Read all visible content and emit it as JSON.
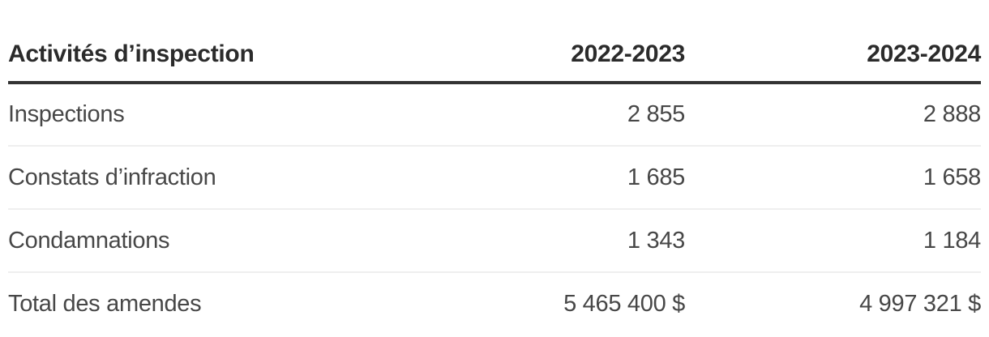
{
  "table": {
    "columns": [
      "Activités d’inspection",
      "2022-2023",
      "2023-2024"
    ],
    "rows": [
      [
        "Inspections",
        "2 855",
        "2 888"
      ],
      [
        "Constats d’infraction",
        "1 685",
        "1 658"
      ],
      [
        "Condamnations",
        "1 343",
        "1 184"
      ],
      [
        "Total des amendes",
        "5 465 400 $",
        "4 997 321 $"
      ]
    ]
  },
  "colors": {
    "header_rule": "#333333",
    "row_divider": "#efefef",
    "header_text": "#2b2b2b",
    "body_text": "#474747",
    "background": "#ffffff"
  },
  "chart_data": {
    "type": "table",
    "title": "Activités d’inspection",
    "columns": [
      "Activités d’inspection",
      "2022-2023",
      "2023-2024"
    ],
    "rows": [
      {
        "label": "Inspections",
        "2022-2023": 2855,
        "2023-2024": 2888
      },
      {
        "label": "Constats d’infraction",
        "2022-2023": 1685,
        "2023-2024": 1658
      },
      {
        "label": "Condamnations",
        "2022-2023": 1343,
        "2023-2024": 1184
      },
      {
        "label": "Total des amendes",
        "2022-2023": "5 465 400 $",
        "2023-2024": "4 997 321 $"
      }
    ],
    "layout_hints": {
      "first_column_align": "left",
      "value_columns_align": "right",
      "header_rule": "thick-dark",
      "row_dividers": "thin-light-gray",
      "thousands_separator": "space"
    }
  }
}
